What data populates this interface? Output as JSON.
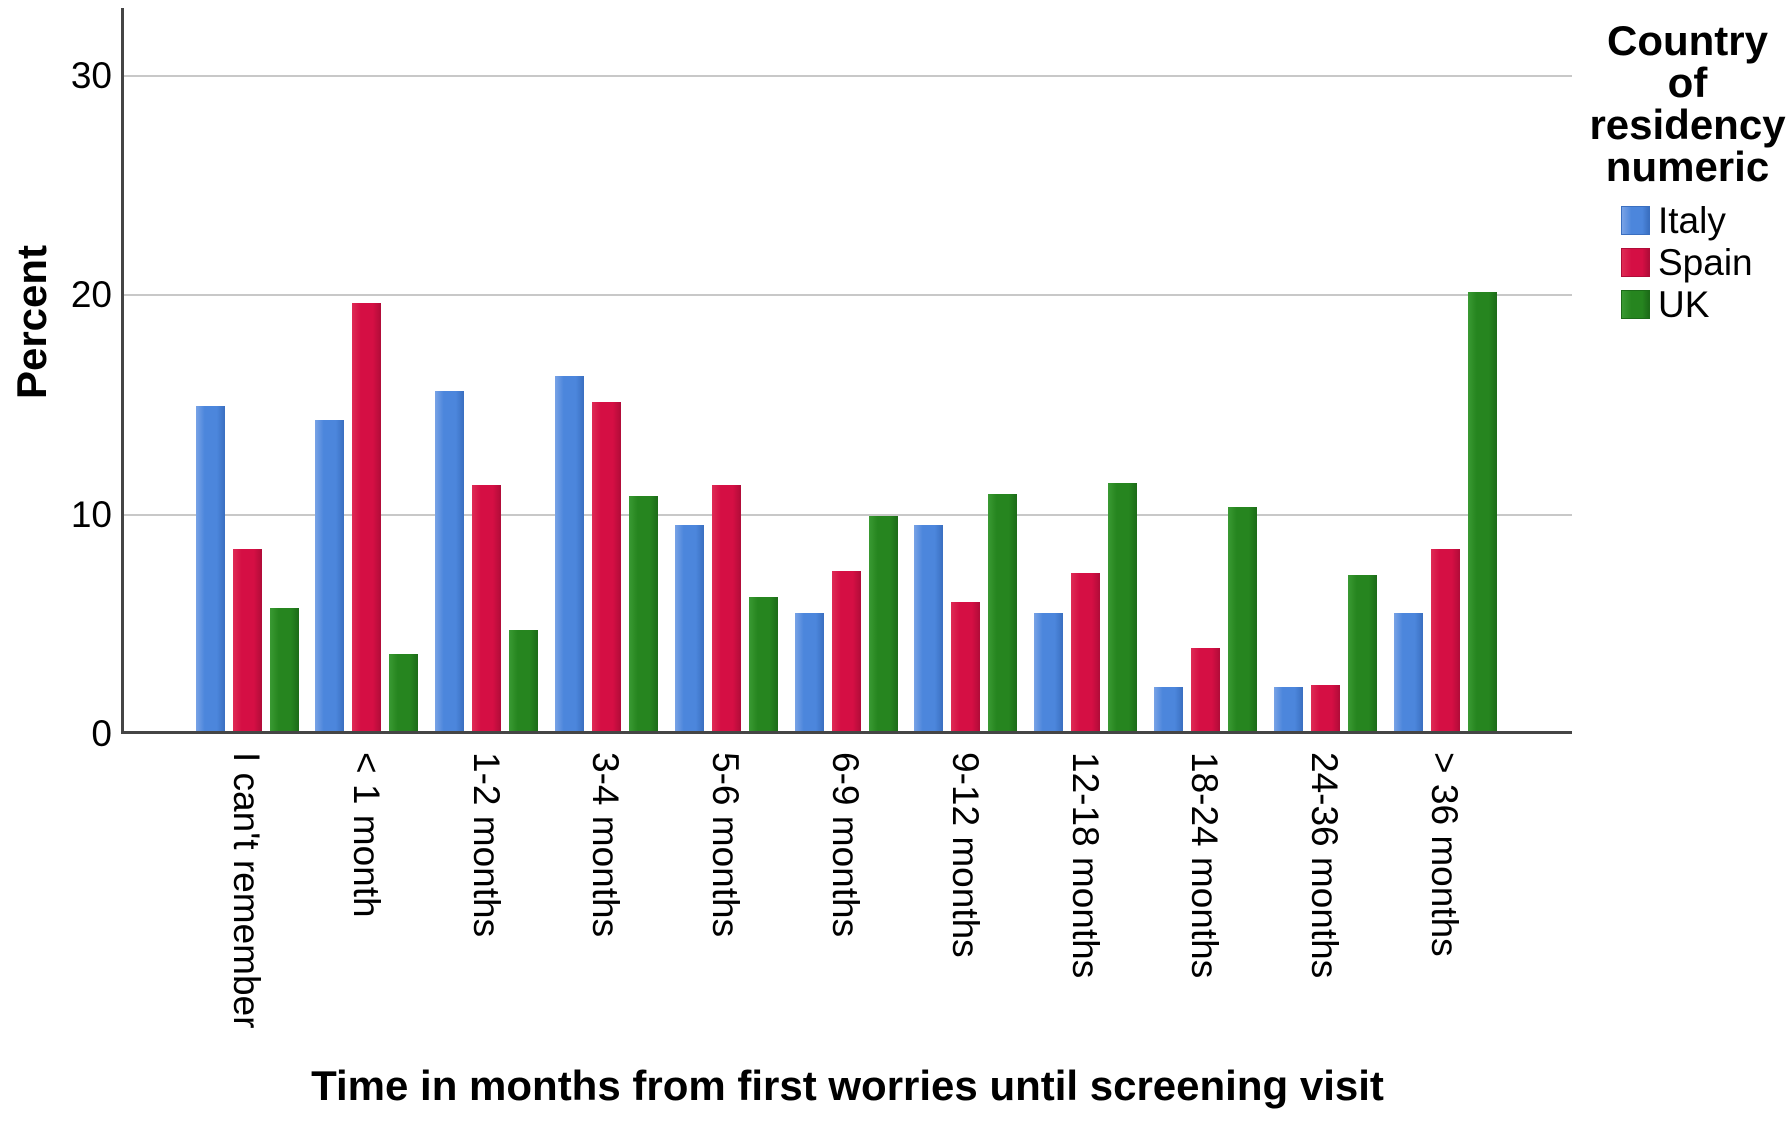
{
  "chart_data": {
    "type": "bar",
    "title": "",
    "categories": [
      "I can't remember",
      "< 1 month",
      "1-2 months",
      "3-4 months",
      "5-6 months",
      "6-9 months",
      "9-12 months",
      "12-18 months",
      "18-24 months",
      "24-36 months",
      "> 36 months"
    ],
    "series": [
      {
        "name": "Italy",
        "color": "#4c86dc",
        "color_light": "#79a3e6",
        "color_dark": "#3a6fc0",
        "values": [
          14.8,
          14.2,
          15.5,
          16.2,
          9.4,
          5.4,
          9.4,
          5.4,
          2.0,
          2.0,
          5.4
        ]
      },
      {
        "name": "Spain",
        "color": "#d50f44",
        "color_light": "#de2b55",
        "color_dark": "#b00c38",
        "values": [
          8.3,
          19.5,
          11.2,
          15.0,
          11.2,
          7.3,
          5.9,
          7.2,
          3.8,
          2.1,
          8.3
        ]
      },
      {
        "name": "UK",
        "color": "#26851f",
        "color_light": "#3a9a33",
        "color_dark": "#1c6b18",
        "values": [
          5.6,
          3.5,
          4.6,
          10.7,
          6.1,
          9.8,
          10.8,
          11.3,
          10.2,
          7.1,
          20.0
        ]
      }
    ],
    "xlabel": "Time in months from first worries until screening visit",
    "ylabel": "Percent",
    "yticks": [
      0,
      10,
      20,
      30
    ],
    "ytick_labels": [
      "0",
      "10",
      "20",
      "30"
    ],
    "ylim": [
      0,
      33.1
    ],
    "grid": "horizontal-only",
    "gridline_color": "#c8c8c8",
    "axis_color": "#454545",
    "legend_position": "right",
    "legend_title": "Country of residency numeric",
    "legend_title_lines": [
      "Country",
      "of",
      "residency",
      "numeric"
    ],
    "legend_entries": [
      "Italy",
      "Spain",
      "UK"
    ]
  }
}
